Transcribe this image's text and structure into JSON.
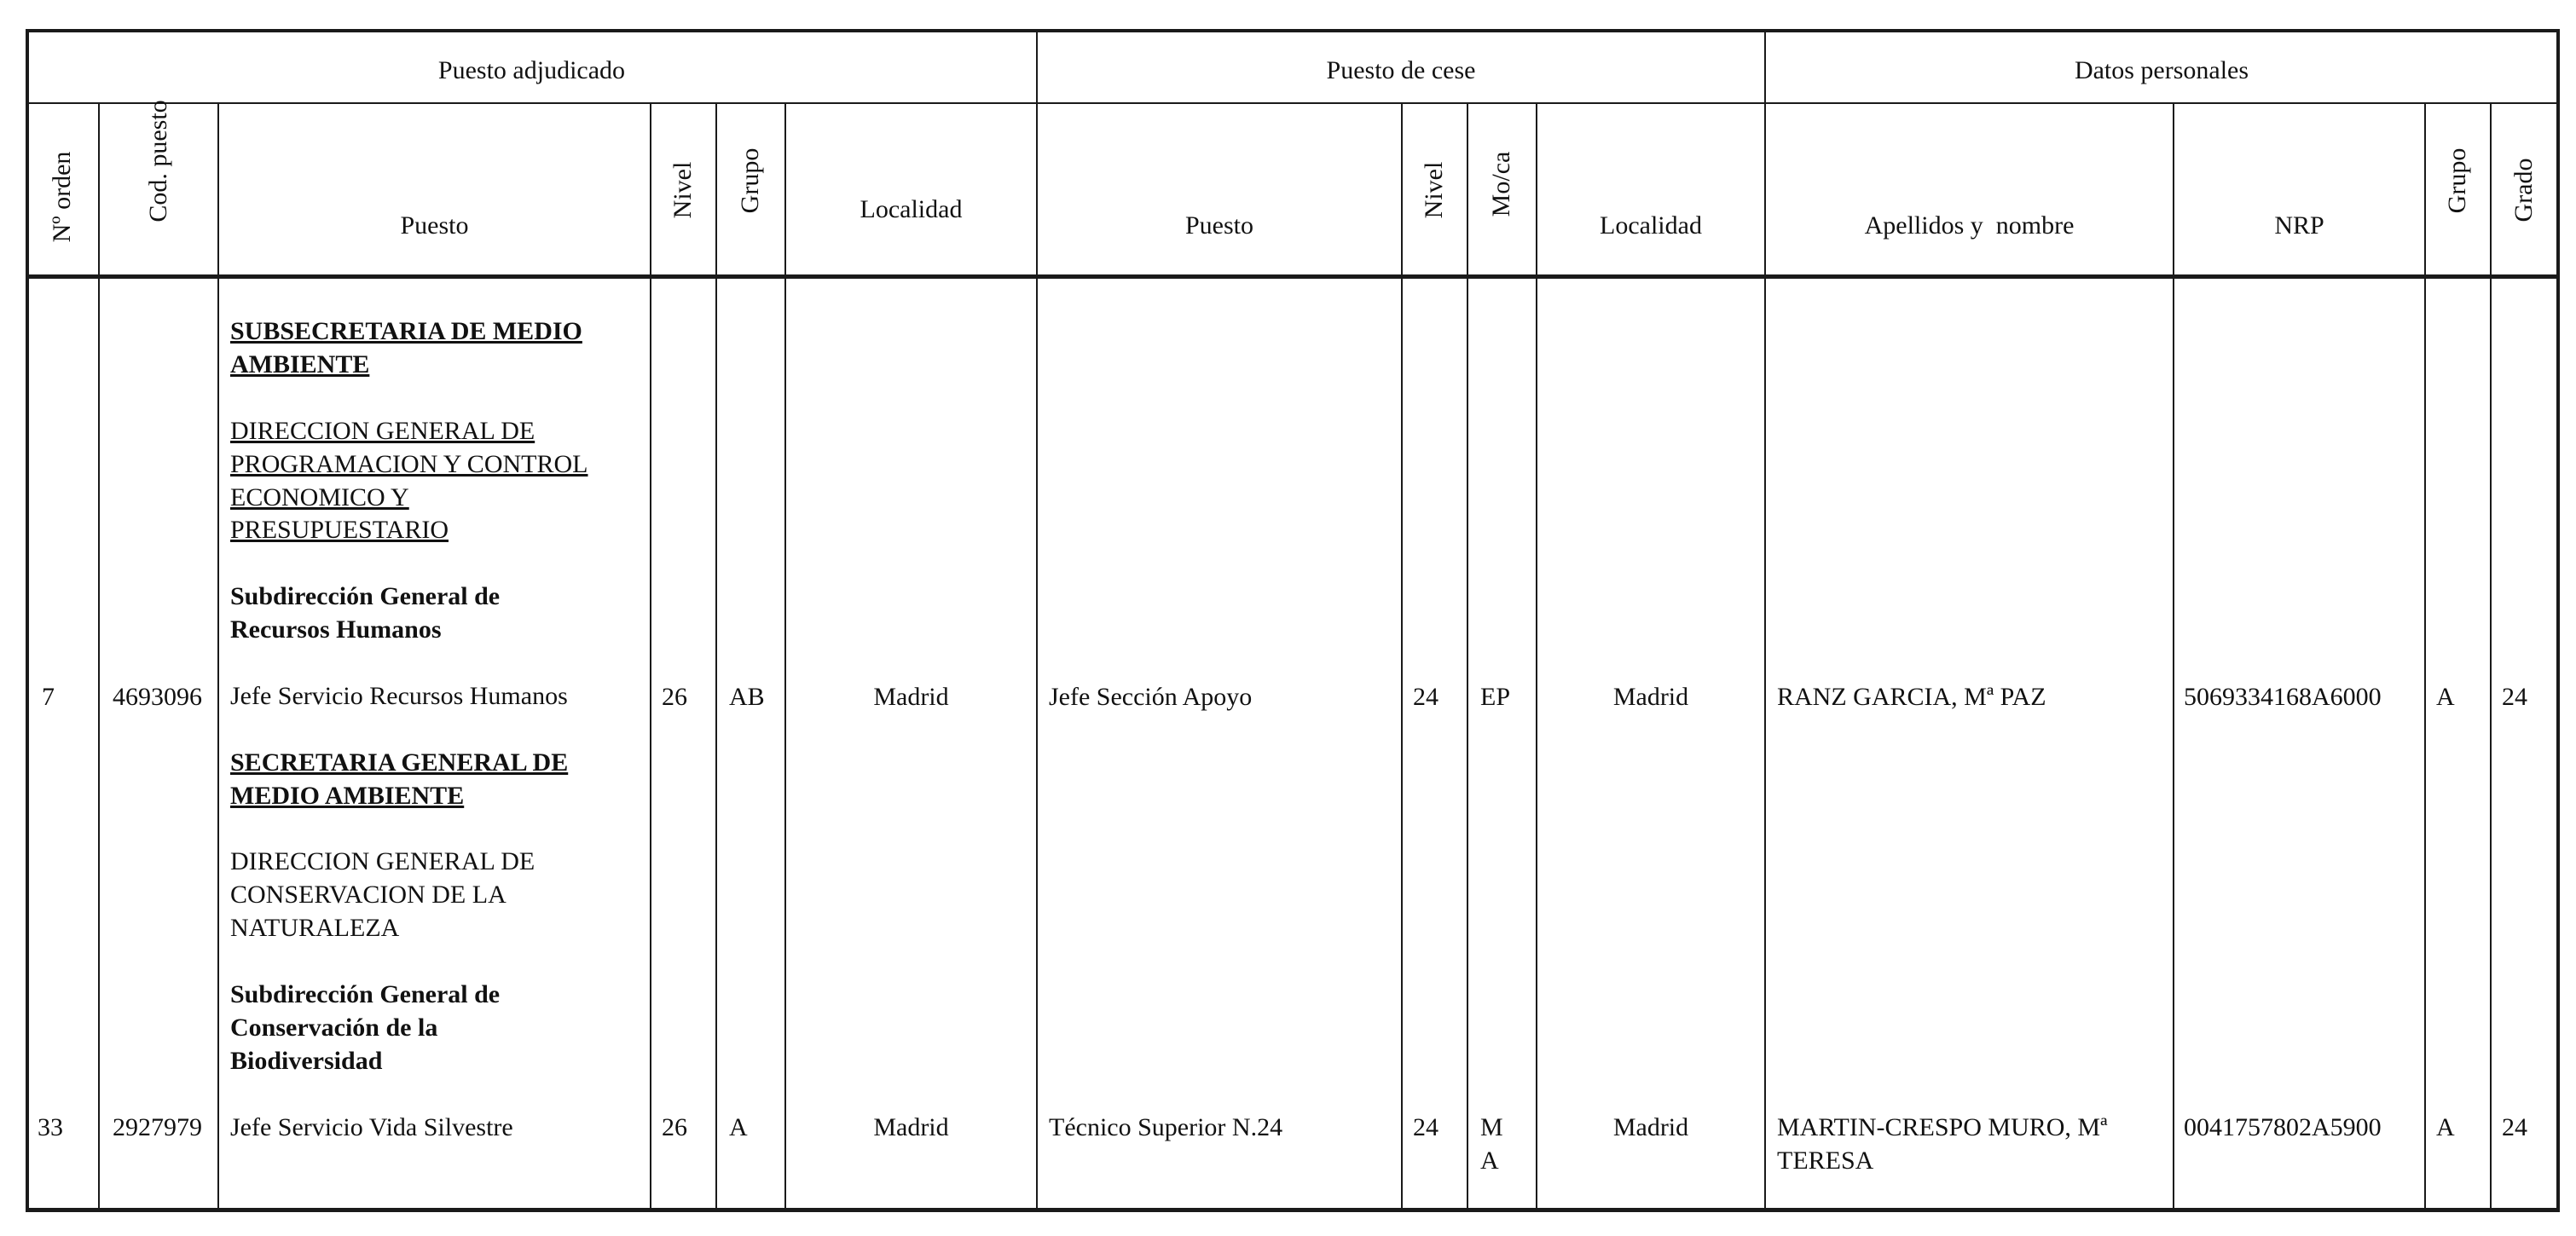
{
  "groups": {
    "adjudicado": "Puesto adjudicado",
    "cese": "Puesto de cese",
    "personales": "Datos personales"
  },
  "headers": {
    "orden": "Nº orden",
    "cod_puesto": "Cod. puesto",
    "puesto": "Puesto",
    "nivel": "Nivel",
    "grupo": "Grupo",
    "localidad": "Localidad",
    "cese_puesto": "Puesto",
    "cese_nivel": "Nivel",
    "cese_moca": "Mo/ca",
    "cese_localidad": "Localidad",
    "apellidos": "Apellidos y  nombre",
    "nrp": "NRP",
    "dp_grupo": "Grupo",
    "dp_grado": "Grado"
  },
  "puesto_flow": [
    {
      "style": "bold-underline",
      "text": [
        "SUBSECRETARIA DE MEDIO",
        "AMBIENTE"
      ]
    },
    {
      "style": "underline",
      "text": [
        "DIRECCION GENERAL DE",
        "PROGRAMACION Y CONTROL",
        "ECONOMICO Y",
        "PRESUPUESTARIO"
      ]
    },
    {
      "style": "bold",
      "text": [
        "Subdirección General de",
        "Recursos Humanos"
      ]
    },
    {
      "style": "plain",
      "text": [
        "Jefe Servicio Recursos Humanos"
      ]
    },
    {
      "style": "bold-underline",
      "text": [
        "SECRETARIA GENERAL DE",
        "MEDIO AMBIENTE"
      ]
    },
    {
      "style": "plain",
      "text": [
        "DIRECCION GENERAL DE",
        "CONSERVACION DE LA",
        "NATURALEZA"
      ]
    },
    {
      "style": "bold",
      "text": [
        "Subdirección General de",
        "Conservación de la",
        "Biodiversidad"
      ]
    },
    {
      "style": "plain",
      "text": [
        "Jefe Servicio Vida Silvestre"
      ]
    }
  ],
  "rows": [
    {
      "orden": "7",
      "cod_puesto": "4693096",
      "puesto": "Jefe Servicio Recursos Humanos",
      "nivel": "26",
      "grupo": "AB",
      "localidad": "Madrid",
      "cese_puesto": "Jefe Sección Apoyo",
      "cese_nivel": "24",
      "cese_moca": "EP",
      "cese_localidad": "Madrid",
      "apellidos": "RANZ GARCIA, Mª PAZ",
      "nrp": "5069334168A6000",
      "dp_grupo": "A",
      "dp_grado": "24"
    },
    {
      "orden": "33",
      "cod_puesto": "2927979",
      "puesto": "Jefe Servicio Vida Silvestre",
      "nivel": "26",
      "grupo": "A",
      "localidad": "Madrid",
      "cese_puesto": "Técnico Superior N.24",
      "cese_nivel": "24",
      "cese_moca": "M\nA",
      "cese_localidad": "Madrid",
      "apellidos": "MARTIN-CRESPO MURO, Mª\nTERESA",
      "nrp": "0041757802A5900",
      "dp_grupo": "A",
      "dp_grado": "24"
    }
  ]
}
